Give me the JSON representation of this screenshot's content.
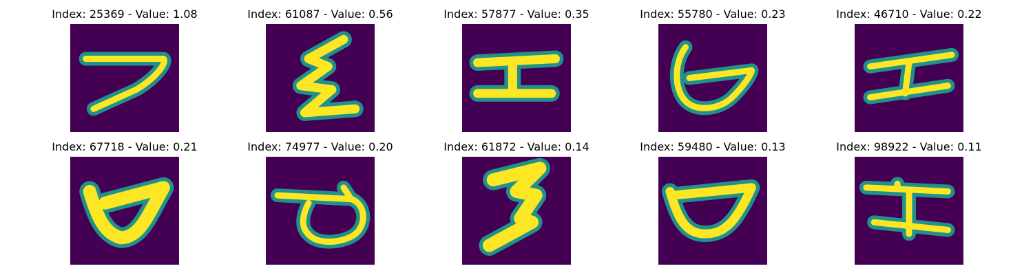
{
  "colors": {
    "background": "#440154",
    "edge": "#21918c",
    "stroke": "#fde725"
  },
  "panels": [
    {
      "title": "Index: 25369 - Value: 1.08",
      "glyph": "seven"
    },
    {
      "title": "Index: 61087 - Value: 0.56",
      "glyph": "zigzag"
    },
    {
      "title": "Index: 57877 - Value: 0.35",
      "glyph": "dbl-bar"
    },
    {
      "title": "Index: 55780 - Value: 0.23",
      "glyph": "hook-bowl"
    },
    {
      "title": "Index: 46710 - Value: 0.22",
      "glyph": "i-beam"
    },
    {
      "title": "Index: 67718 - Value: 0.21",
      "glyph": "cup-thick"
    },
    {
      "title": "Index: 74977 - Value: 0.20",
      "glyph": "cup-bar"
    },
    {
      "title": "Index: 61872 - Value: 0.14",
      "glyph": "bolt"
    },
    {
      "title": "Index: 59480 - Value: 0.13",
      "glyph": "cup"
    },
    {
      "title": "Index: 98922 - Value: 0.11",
      "glyph": "i-beam-2"
    }
  ]
}
